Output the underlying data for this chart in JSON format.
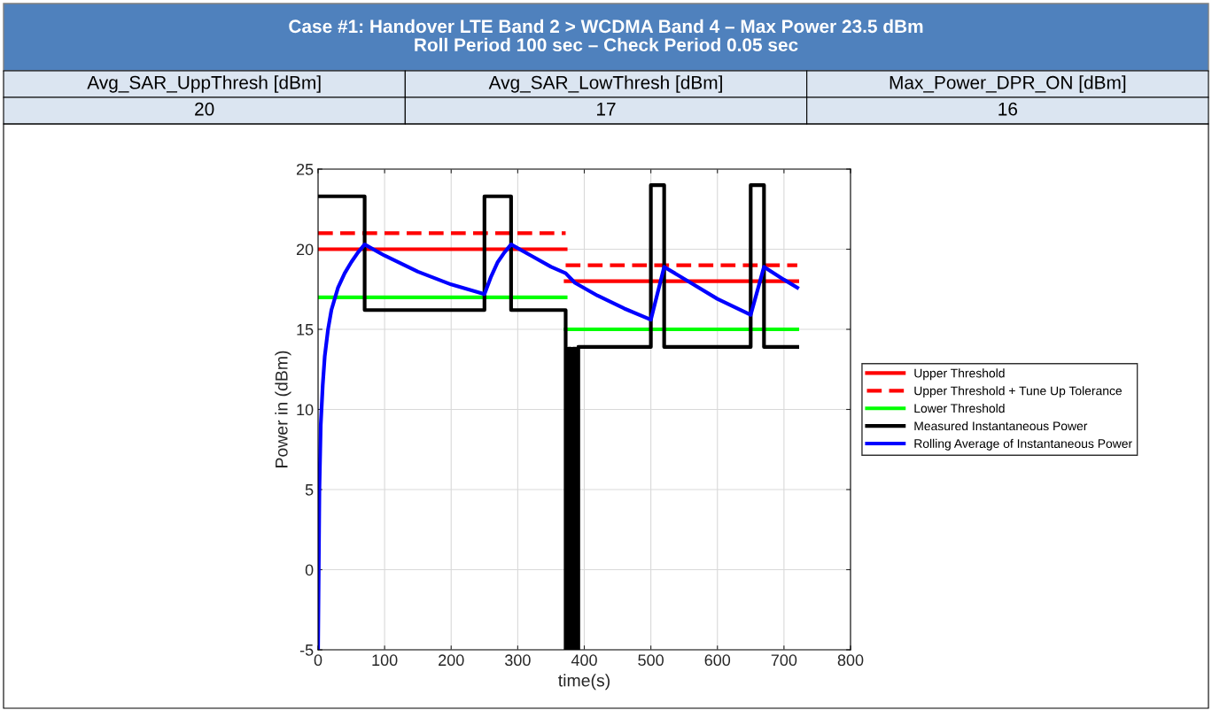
{
  "chart_data": {
    "type": "line",
    "title": "Case #1: Handover LTE Band 2 > WCDMA Band 4 – Max Power 23.5 dBm\nRoll Period 100 sec – Check Period 0.05 sec",
    "annotations": [
      "Avg_SAR_UppThresh [dBm]",
      "Avg_SAR_LowThresh [dBm]",
      "Max_Power_DPR_ON [dBm]",
      "20",
      "17",
      "16"
    ],
    "xlabel": "time(s)",
    "ylabel": "Power in (dBm)",
    "xlim": [
      0,
      800
    ],
    "xticks": [
      0,
      100,
      200,
      300,
      400,
      500,
      600,
      700,
      800
    ],
    "ylim": [
      -5,
      25
    ],
    "yticks": [
      -5,
      0,
      5,
      10,
      15,
      20,
      25
    ],
    "grid": true,
    "legend": "right",
    "series": [
      {
        "name": "Upper Threshold",
        "color": "#ff0000",
        "line_style": "solid",
        "x": [
          0,
          372
        ],
        "values": [
          20,
          20
        ]
      },
      {
        "color": "#ff0000",
        "line_style": "solid",
        "x": [
          372,
          720
        ],
        "values": [
          18,
          18
        ]
      },
      {
        "name": "Upper Threshold + Tune Up Tolerance",
        "color": "#ff0000",
        "line_style": "dashed",
        "x": [
          0,
          372
        ],
        "values": [
          21,
          21
        ]
      },
      {
        "color": "#ff0000",
        "line_style": "dashed",
        "x": [
          372,
          720
        ],
        "values": [
          19,
          19
        ]
      },
      {
        "name": "Lower Threshold",
        "color": "#00ff00",
        "line_style": "solid",
        "x": [
          0,
          372
        ],
        "values": [
          17,
          17
        ]
      },
      {
        "color": "#00ff00",
        "line_style": "solid",
        "x": [
          372,
          720
        ],
        "values": [
          15,
          15
        ]
      },
      {
        "name": "Measured Instantaneous Power",
        "color": "#000000",
        "line_style": "solid",
        "x": [
          0,
          70,
          70,
          250,
          250,
          290,
          290,
          372,
          372,
          376,
          376,
          380,
          380,
          383,
          383,
          387,
          387,
          391,
          391,
          500,
          500,
          520,
          520,
          650,
          650,
          670,
          670,
          720
        ],
        "values": [
          23.3,
          23.3,
          16.2,
          16.2,
          23.3,
          23.3,
          16.2,
          16.2,
          -5,
          -5,
          13.8,
          13.8,
          -5,
          -5,
          13.8,
          13.8,
          -5,
          -5,
          13.9,
          13.9,
          24,
          24,
          13.9,
          13.9,
          24,
          24,
          13.9,
          13.9
        ]
      },
      {
        "name": "Rolling Average of Instantaneous Power",
        "color": "#0000ff",
        "line_style": "solid",
        "x": [
          0,
          1,
          2,
          4,
          7,
          10,
          15,
          20,
          30,
          40,
          50,
          60,
          70,
          100,
          150,
          200,
          250,
          260,
          270,
          280,
          290,
          320,
          350,
          372,
          386,
          420,
          460,
          500,
          520,
          560,
          600,
          650,
          670,
          700,
          720
        ],
        "values": [
          -5,
          0,
          5,
          9,
          11.5,
          13.3,
          15,
          16.2,
          17.6,
          18.5,
          19.2,
          19.8,
          20.3,
          19.6,
          18.6,
          17.8,
          17.2,
          18.3,
          19.2,
          19.8,
          20.3,
          19.6,
          18.9,
          18.5,
          17.9,
          17.1,
          16.3,
          15.6,
          18.9,
          17.9,
          16.9,
          15.9,
          18.9,
          18.1,
          17.6
        ]
      }
    ]
  }
}
